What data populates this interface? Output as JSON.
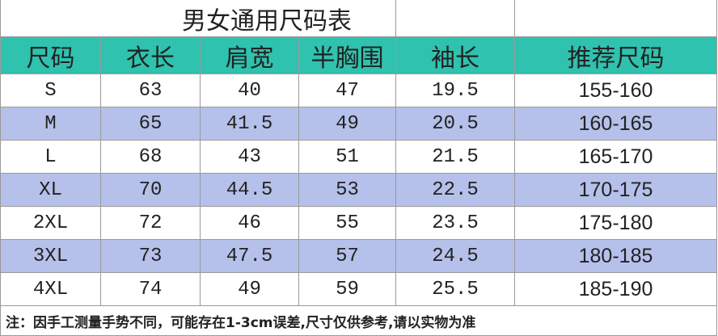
{
  "table": {
    "title": "男女通用尺码表",
    "headers": [
      "尺码",
      "衣长",
      "肩宽",
      "半胸围",
      "袖长",
      "推荐尺码"
    ],
    "rows": [
      [
        "S",
        "63",
        "40",
        "47",
        "19.5",
        "155-160"
      ],
      [
        "M",
        "65",
        "41.5",
        "49",
        "20.5",
        "160-165"
      ],
      [
        "L",
        "68",
        "43",
        "51",
        "21.5",
        "165-170"
      ],
      [
        "XL",
        "70",
        "44.5",
        "53",
        "22.5",
        "170-175"
      ],
      [
        "2XL",
        "72",
        "46",
        "55",
        "23.5",
        "175-180"
      ],
      [
        "3XL",
        "73",
        "47.5",
        "57",
        "24.5",
        "180-185"
      ],
      [
        "4XL",
        "74",
        "49",
        "59",
        "25.5",
        "185-190"
      ]
    ],
    "note": "注：因手工测量手势不同，可能存在1-3cm误差,尺寸仅供参考,请以实物为准"
  }
}
